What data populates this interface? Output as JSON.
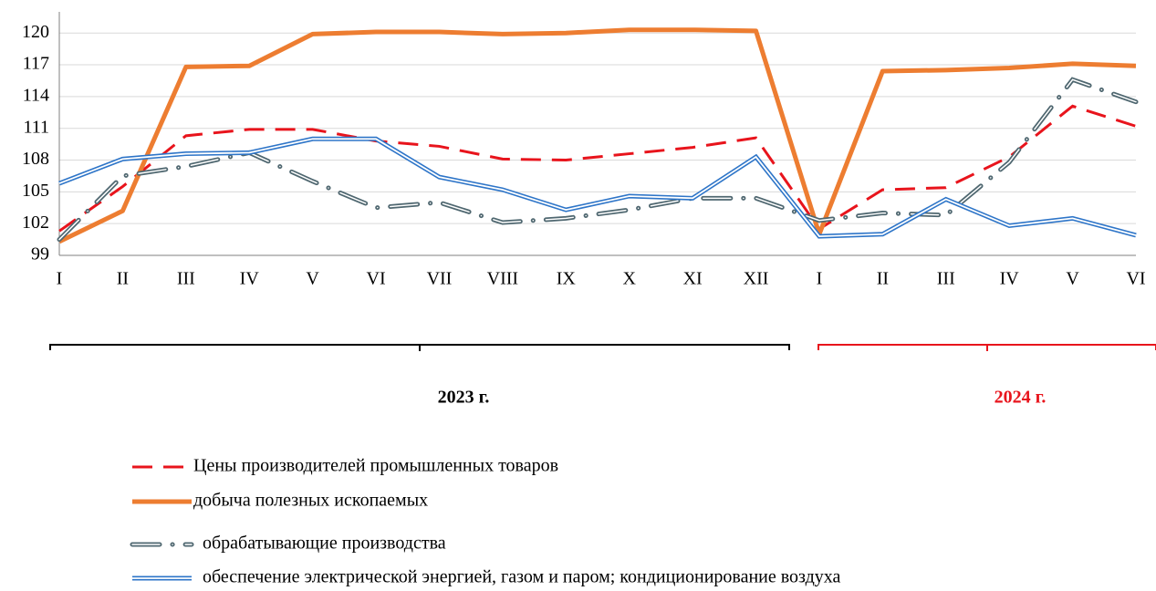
{
  "chart_data": {
    "type": "line",
    "categories": [
      "I",
      "II",
      "III",
      "IV",
      "V",
      "VI",
      "VII",
      "VIII",
      "IX",
      "X",
      "XI",
      "XII",
      "I",
      "II",
      "III",
      "IV",
      "V",
      "VI"
    ],
    "groups": [
      "2023 г.",
      "2024 г."
    ],
    "group_colors": [
      "#000000",
      "#e8141c"
    ],
    "ylim": [
      99,
      122
    ],
    "yticks": [
      99,
      102,
      105,
      108,
      111,
      114,
      117,
      120
    ],
    "series": [
      {
        "name": "Цены производителей промышленных товаров",
        "color": "#e8141c",
        "style": "dashed",
        "values": [
          101.3,
          105.5,
          110.3,
          110.9,
          110.9,
          109.8,
          109.3,
          108.1,
          108.0,
          108.6,
          109.2,
          110.1,
          101.5,
          105.2,
          105.4,
          108.3,
          113.1,
          111.2
        ]
      },
      {
        "name": "добыча полезных ископаемых",
        "color": "#ed7d31",
        "style": "solid",
        "values": [
          100.3,
          103.2,
          116.8,
          116.9,
          119.9,
          120.1,
          120.1,
          119.9,
          120.0,
          120.3,
          120.3,
          120.2,
          101.0,
          116.4,
          116.5,
          116.7,
          117.1,
          116.9
        ]
      },
      {
        "name": "обрабатывающие производства",
        "color": "#4f6770",
        "style": "double-dash-dot",
        "values": [
          100.5,
          106.5,
          107.4,
          108.7,
          106.0,
          103.5,
          104.0,
          102.1,
          102.5,
          103.3,
          104.4,
          104.4,
          102.3,
          103.0,
          102.8,
          107.8,
          115.6,
          113.5
        ]
      },
      {
        "name": "обеспечение электрической энергией, газом и паром; кондиционирование воздуха",
        "color": "#2e75c8",
        "style": "double",
        "values": [
          105.8,
          108.1,
          108.6,
          108.7,
          110.0,
          110.0,
          106.4,
          105.2,
          103.3,
          104.6,
          104.4,
          108.3,
          100.8,
          101.0,
          104.3,
          101.8,
          102.5,
          100.9
        ]
      }
    ]
  }
}
